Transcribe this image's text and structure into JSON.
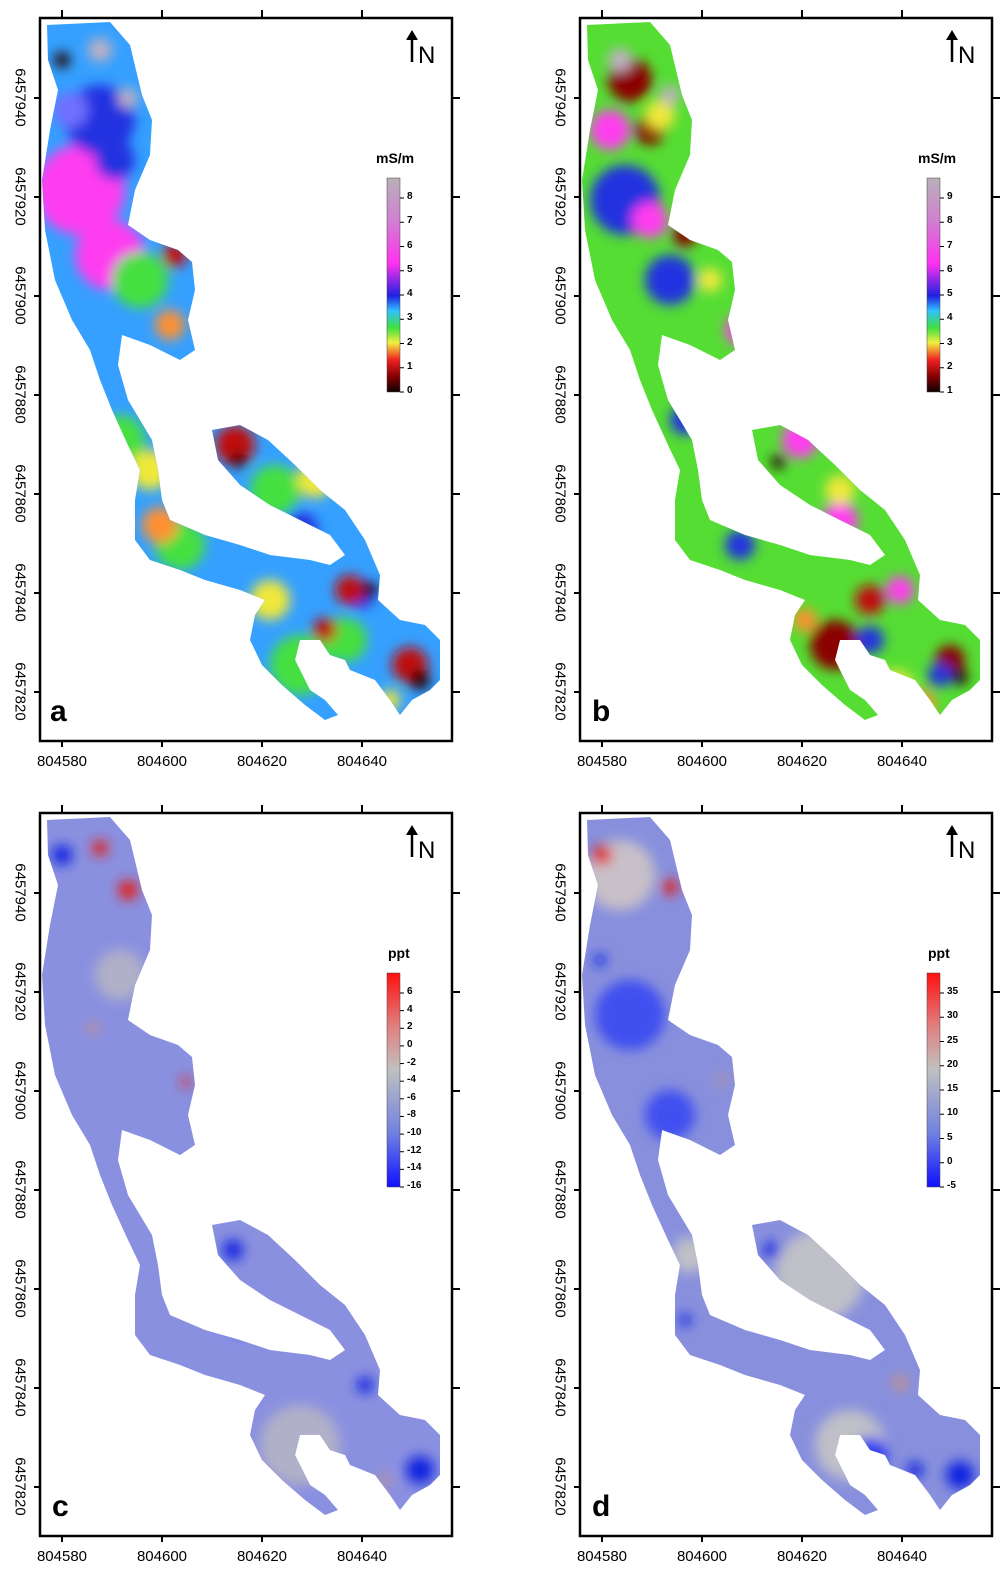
{
  "panels": [
    {
      "letter": "a",
      "unit": "mS/m",
      "north": "N",
      "colorbar_labels": [
        "8",
        "7",
        "6",
        "5",
        "4",
        "3",
        "2",
        "1",
        "0"
      ],
      "colorbar_scale": "conductivity",
      "colors": {
        "dominant": "#35a0ff"
      }
    },
    {
      "letter": "b",
      "unit": "mS/m",
      "north": "N",
      "colorbar_labels": [
        "9",
        "8",
        "7",
        "6",
        "5",
        "4",
        "3",
        "2",
        "1"
      ],
      "colorbar_scale": "conductivity",
      "colors": {
        "dominant": "#55dd33"
      }
    },
    {
      "letter": "c",
      "unit": "ppt",
      "north": "N",
      "colorbar_labels": [
        "6",
        "4",
        "2",
        "0",
        "-2",
        "-4",
        "-6",
        "-8",
        "-10",
        "-12",
        "-14",
        "-16"
      ],
      "colorbar_scale": "diverging",
      "colors": {
        "dominant": "#8a90e0"
      }
    },
    {
      "letter": "d",
      "unit": "ppt",
      "north": "N",
      "colorbar_labels": [
        "35",
        "30",
        "25",
        "20",
        "15",
        "10",
        "5",
        "0",
        "-5"
      ],
      "colorbar_scale": "diverging",
      "colors": {
        "dominant": "#8890dd"
      }
    }
  ],
  "axes": {
    "y_ticks": [
      "6457940",
      "6457920",
      "6457900",
      "6457880",
      "6457860",
      "6457840",
      "6457820"
    ],
    "x_ticks": [
      "804580",
      "804600",
      "804620",
      "804640"
    ]
  }
}
